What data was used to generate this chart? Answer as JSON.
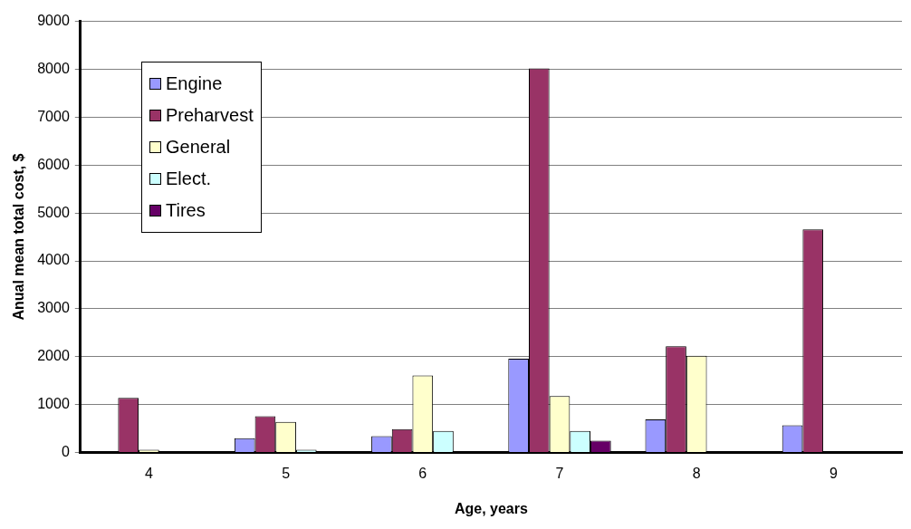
{
  "chart_data": {
    "type": "bar",
    "xlabel": "Age, years",
    "ylabel": "Anual mean total cost, $",
    "categories": [
      "4",
      "5",
      "6",
      "7",
      "8",
      "9"
    ],
    "series": [
      {
        "name": "Engine",
        "color": "#9999ff",
        "values": [
          0,
          300,
          340,
          1960,
          690,
          570
        ]
      },
      {
        "name": "Preharvest",
        "color": "#993366",
        "values": [
          1140,
          760,
          490,
          8020,
          2220,
          4660
        ]
      },
      {
        "name": "General",
        "color": "#ffffcc",
        "values": [
          60,
          640,
          1610,
          1180,
          2020,
          0
        ]
      },
      {
        "name": "Elect.",
        "color": "#ccffff",
        "values": [
          0,
          60,
          450,
          450,
          0,
          0
        ]
      },
      {
        "name": "Tires",
        "color": "#660066",
        "values": [
          0,
          0,
          0,
          250,
          0,
          0
        ]
      }
    ],
    "ylim": [
      0,
      9000
    ],
    "yticks": [
      0,
      1000,
      2000,
      3000,
      4000,
      5000,
      6000,
      7000,
      8000,
      9000
    ],
    "grid": "y",
    "legend": "top left"
  }
}
